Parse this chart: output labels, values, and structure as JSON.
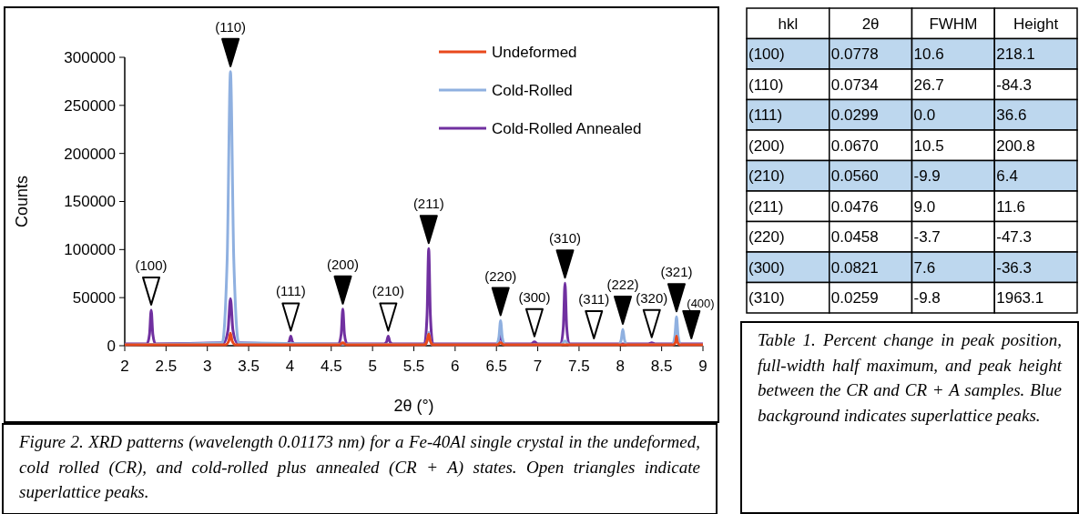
{
  "chart_data": [
    {
      "type": "line",
      "xlabel": "2θ (°)",
      "ylabel": "Counts",
      "xlim": [
        2,
        9
      ],
      "ylim": [
        0,
        300000
      ],
      "xticks": [
        2,
        2.5,
        3,
        3.5,
        4,
        4.5,
        5,
        5.5,
        6,
        6.5,
        7,
        7.5,
        8,
        8.5,
        9
      ],
      "yticks": [
        0,
        50000,
        100000,
        150000,
        200000,
        250000,
        300000
      ],
      "legend": "top right",
      "series": [
        {
          "name": "Undeformed",
          "color": "#e8481c",
          "x": [
            2,
            3.22,
            3.26,
            3.28,
            3.3,
            3.34,
            4.6,
            4.64,
            4.68,
            5.63,
            5.66,
            5.68,
            5.7,
            5.73,
            6.51,
            6.55,
            6.59,
            8.64,
            8.67,
            8.68,
            8.69,
            8.72,
            9
          ],
          "values": [
            1000,
            1000,
            5000,
            13000,
            5000,
            1000,
            1000,
            3000,
            1000,
            1000,
            5000,
            12000,
            5000,
            1000,
            1000,
            3000,
            1000,
            1000,
            4000,
            10000,
            4000,
            1000,
            1000
          ]
        },
        {
          "name": "Cold-Rolled",
          "color": "#8fb0e0",
          "x": [
            2,
            3.18,
            3.24,
            3.28,
            3.32,
            3.38,
            5.63,
            5.66,
            5.68,
            5.7,
            5.73,
            6.5,
            6.53,
            6.55,
            6.57,
            6.6,
            7.28,
            7.33,
            7.38,
            7.98,
            8.01,
            8.03,
            8.05,
            8.08,
            8.63,
            8.66,
            8.68,
            8.7,
            8.73,
            9
          ],
          "values": [
            1000,
            3000,
            90000,
            285000,
            90000,
            3000,
            1000,
            5000,
            14000,
            5000,
            1000,
            1000,
            9000,
            26000,
            9000,
            1000,
            1000,
            5000,
            1000,
            1000,
            6000,
            17000,
            6000,
            1000,
            1000,
            10000,
            30000,
            10000,
            1000,
            1000
          ]
        },
        {
          "name": "Cold-Rolled Annealed",
          "color": "#7030a0",
          "x": [
            2,
            2.27,
            2.3,
            2.32,
            2.34,
            2.37,
            3.2,
            3.25,
            3.28,
            3.31,
            3.36,
            3.96,
            3.99,
            4.01,
            4.03,
            4.06,
            4.59,
            4.62,
            4.64,
            4.66,
            4.69,
            5.14,
            5.17,
            5.19,
            5.21,
            5.24,
            5.63,
            5.66,
            5.68,
            5.7,
            5.73,
            6.5,
            6.53,
            6.55,
            6.57,
            6.6,
            6.92,
            6.96,
            7.0,
            7.28,
            7.31,
            7.33,
            7.35,
            7.38,
            8.34,
            8.38,
            8.42,
            8.63,
            8.66,
            8.68,
            8.7,
            8.73,
            9
          ],
          "values": [
            2000,
            2000,
            12000,
            37000,
            12000,
            2000,
            3000,
            16000,
            49000,
            16000,
            3000,
            2000,
            4000,
            10000,
            4000,
            2000,
            2000,
            12000,
            38000,
            12000,
            2000,
            2000,
            4000,
            10000,
            4000,
            2000,
            2000,
            32000,
            101000,
            32000,
            2000,
            2000,
            5000,
            14000,
            5000,
            2000,
            2000,
            4000,
            2000,
            2000,
            20000,
            65000,
            20000,
            2000,
            2000,
            3000,
            2000,
            2000,
            4000,
            10000,
            4000,
            2000,
            2000
          ]
        }
      ],
      "annotations": [
        {
          "text": "(100)",
          "x": 2.32,
          "y": 37000
        },
        {
          "text": "(110)",
          "x": 3.28,
          "y": 285000
        },
        {
          "text": "(111)",
          "x": 4.01,
          "y": 10000
        },
        {
          "text": "(200)",
          "x": 4.64,
          "y": 38000
        },
        {
          "text": "(210)",
          "x": 5.19,
          "y": 10000
        },
        {
          "text": "(211)",
          "x": 5.68,
          "y": 101000
        },
        {
          "text": "(220)",
          "x": 6.55,
          "y": 26000
        },
        {
          "text": "(300)",
          "x": 6.96,
          "y": 4000
        },
        {
          "text": "(310)",
          "x": 7.33,
          "y": 65000
        },
        {
          "text": "(311)",
          "x": 7.68,
          "y": 2000
        },
        {
          "text": "(222)",
          "x": 8.03,
          "y": 17000
        },
        {
          "text": "(320)",
          "x": 8.38,
          "y": 3000
        },
        {
          "text": "(321)",
          "x": 8.68,
          "y": 30000
        },
        {
          "text": "(400)",
          "x": 8.86,
          "y": 2000
        },
        "Figure 2. XRD patterns (wavelength 0.01173 nm) for a Fe-40Al single crystal in the undeformed, cold rolled (CR), and cold-rolled plus annealed (CR + A) states. Open triangles indicate superlattice peaks."
      ]
    },
    {
      "type": "other",
      "ylabel": "hkl",
      "categories": [
        "2θ",
        "FWHM",
        "Height"
      ],
      "y_categories": [
        "(100)",
        "(110)",
        "(111)",
        "(200)",
        "(210)",
        "(211)",
        "(220)",
        "(300)",
        "(310)"
      ],
      "cell_labels": [
        [
          "0.0778",
          "10.6",
          "218.1"
        ],
        [
          "0.0734",
          "26.7",
          "-84.3"
        ],
        [
          "0.0299",
          "0.0",
          "36.6"
        ],
        [
          "0.0670",
          "10.5",
          "200.8"
        ],
        [
          "0.0560",
          "-9.9",
          "6.4"
        ],
        [
          "0.0476",
          "9.0",
          "11.6"
        ],
        [
          "0.0458",
          "-3.7",
          "-47.3"
        ],
        [
          "0.0821",
          "7.6",
          "-36.3"
        ],
        [
          "0.0259",
          "-9.8",
          "1963.1"
        ]
      ],
      "colors": [
        [
          "#bdd7ee",
          "#bdd7ee",
          "#bdd7ee"
        ],
        [
          "#ffffff",
          "#ffffff",
          "#ffffff"
        ],
        [
          "#bdd7ee",
          "#bdd7ee",
          "#bdd7ee"
        ],
        [
          "#ffffff",
          "#ffffff",
          "#ffffff"
        ],
        [
          "#bdd7ee",
          "#bdd7ee",
          "#bdd7ee"
        ],
        [
          "#ffffff",
          "#ffffff",
          "#ffffff"
        ],
        [
          "#ffffff",
          "#ffffff",
          "#ffffff"
        ],
        [
          "#bdd7ee",
          "#bdd7ee",
          "#bdd7ee"
        ],
        [
          "#ffffff",
          "#ffffff",
          "#ffffff"
        ]
      ],
      "annotations": [
        "Table 1. Percent change in peak position, full-width half maximum, and peak height between the CR and CR + A samples. Blue background indicates superlattice peaks."
      ]
    }
  ]
}
